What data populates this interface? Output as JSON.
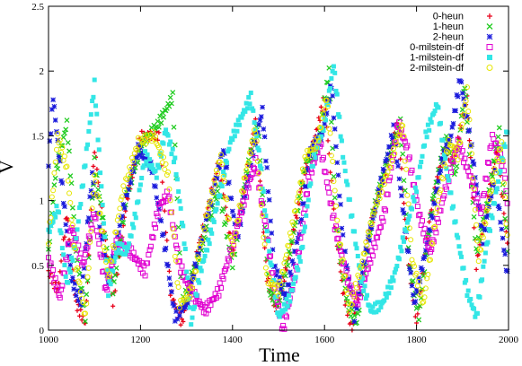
{
  "chart_data": {
    "type": "scatter",
    "title": "",
    "xlabel": "Time",
    "ylabel": "V",
    "xlim": [
      1000,
      2000
    ],
    "ylim": [
      0,
      2.5
    ],
    "x_ticks": [
      "1000",
      "1200",
      "1400",
      "1600",
      "1800",
      "2000"
    ],
    "x_tick_values": [
      1000,
      1200,
      1400,
      1600,
      1800,
      2000
    ],
    "y_ticks": [
      "0",
      "0.5",
      "1",
      "1.5",
      "2",
      "2.5"
    ],
    "y_tick_values": [
      0,
      0.5,
      1,
      1.5,
      2,
      2.5
    ],
    "grid": false,
    "legend_position": "top-right",
    "series": [
      {
        "name": "0-heun",
        "marker": "plus",
        "color": "#e8001a",
        "anchors": [
          [
            1000,
            0.45
          ],
          [
            1020,
            0.3
          ],
          [
            1040,
            0.9
          ],
          [
            1060,
            0.2
          ],
          [
            1080,
            0.05
          ],
          [
            1100,
            1.4
          ],
          [
            1140,
            0.2
          ],
          [
            1170,
            1.0
          ],
          [
            1200,
            1.5
          ],
          [
            1240,
            1.5
          ],
          [
            1265,
            0.3
          ],
          [
            1290,
            0.05
          ],
          [
            1330,
            0.7
          ],
          [
            1370,
            1.3
          ],
          [
            1400,
            0.6
          ],
          [
            1425,
            1.1
          ],
          [
            1450,
            1.6
          ],
          [
            1475,
            0.4
          ],
          [
            1495,
            0.15
          ],
          [
            1525,
            0.6
          ],
          [
            1555,
            1.2
          ],
          [
            1580,
            1.5
          ],
          [
            1600,
            1.8
          ],
          [
            1620,
            0.9
          ],
          [
            1640,
            0.3
          ],
          [
            1660,
            0.0
          ],
          [
            1700,
            0.8
          ],
          [
            1730,
            1.2
          ],
          [
            1760,
            1.6
          ],
          [
            1780,
            0.6
          ],
          [
            1800,
            0.05
          ],
          [
            1830,
            0.9
          ],
          [
            1860,
            1.4
          ],
          [
            1880,
            1.3
          ],
          [
            1910,
            1.8
          ],
          [
            1930,
            0.5
          ],
          [
            1950,
            0.9
          ],
          [
            1975,
            1.4
          ],
          [
            2000,
            0.6
          ]
        ]
      },
      {
        "name": "1-heun",
        "marker": "cross",
        "color": "#22cc22",
        "anchors": [
          [
            1000,
            0.6
          ],
          [
            1015,
            1.2
          ],
          [
            1040,
            1.6
          ],
          [
            1060,
            0.6
          ],
          [
            1080,
            0.1
          ],
          [
            1100,
            1.3
          ],
          [
            1140,
            0.3
          ],
          [
            1170,
            1.05
          ],
          [
            1205,
            1.45
          ],
          [
            1240,
            1.6
          ],
          [
            1270,
            1.8
          ],
          [
            1290,
            0.2
          ],
          [
            1330,
            0.6
          ],
          [
            1370,
            1.1
          ],
          [
            1400,
            0.5
          ],
          [
            1430,
            1.2
          ],
          [
            1455,
            1.6
          ],
          [
            1480,
            0.3
          ],
          [
            1500,
            0.2
          ],
          [
            1530,
            0.7
          ],
          [
            1560,
            1.3
          ],
          [
            1585,
            1.4
          ],
          [
            1610,
            2.0
          ],
          [
            1625,
            0.8
          ],
          [
            1650,
            0.2
          ],
          [
            1670,
            0.05
          ],
          [
            1705,
            0.9
          ],
          [
            1735,
            1.3
          ],
          [
            1765,
            1.6
          ],
          [
            1785,
            0.5
          ],
          [
            1805,
            0.1
          ],
          [
            1835,
            1.0
          ],
          [
            1865,
            1.5
          ],
          [
            1885,
            1.2
          ],
          [
            1905,
            1.9
          ],
          [
            1930,
            0.6
          ],
          [
            1955,
            1.0
          ],
          [
            1980,
            1.55
          ],
          [
            2000,
            0.5
          ]
        ]
      },
      {
        "name": "2-heun",
        "marker": "star",
        "color": "#1a1adc",
        "anchors": [
          [
            1000,
            1.3
          ],
          [
            1010,
            1.8
          ],
          [
            1030,
            1.1
          ],
          [
            1050,
            0.4
          ],
          [
            1070,
            0.2
          ],
          [
            1095,
            1.2
          ],
          [
            1130,
            0.35
          ],
          [
            1160,
            0.9
          ],
          [
            1195,
            1.4
          ],
          [
            1225,
            1.25
          ],
          [
            1255,
            0.6
          ],
          [
            1275,
            0.1
          ],
          [
            1300,
            0.2
          ],
          [
            1340,
            0.8
          ],
          [
            1380,
            1.4
          ],
          [
            1410,
            0.7
          ],
          [
            1440,
            1.3
          ],
          [
            1465,
            1.7
          ],
          [
            1490,
            0.5
          ],
          [
            1515,
            0.25
          ],
          [
            1545,
            0.75
          ],
          [
            1570,
            1.4
          ],
          [
            1595,
            1.5
          ],
          [
            1615,
            1.9
          ],
          [
            1640,
            0.7
          ],
          [
            1665,
            0.1
          ],
          [
            1690,
            0.6
          ],
          [
            1720,
            1.1
          ],
          [
            1750,
            1.55
          ],
          [
            1775,
            0.8
          ],
          [
            1795,
            0.2
          ],
          [
            1825,
            0.7
          ],
          [
            1855,
            1.3
          ],
          [
            1875,
            1.5
          ],
          [
            1895,
            1.95
          ],
          [
            1920,
            1.4
          ],
          [
            1945,
            0.7
          ],
          [
            1970,
            1.2
          ],
          [
            2000,
            0.35
          ]
        ]
      },
      {
        "name": "0-milstein-df",
        "marker": "square-open",
        "color": "#e000d0",
        "anchors": [
          [
            1000,
            0.55
          ],
          [
            1025,
            0.25
          ],
          [
            1050,
            0.8
          ],
          [
            1075,
            0.5
          ],
          [
            1100,
            0.9
          ],
          [
            1125,
            0.3
          ],
          [
            1150,
            0.7
          ],
          [
            1180,
            0.6
          ],
          [
            1210,
            0.45
          ],
          [
            1240,
            0.95
          ],
          [
            1260,
            1.05
          ],
          [
            1285,
            0.5
          ],
          [
            1310,
            0.3
          ],
          [
            1340,
            0.15
          ],
          [
            1370,
            0.3
          ],
          [
            1400,
            0.65
          ],
          [
            1425,
            1.0
          ],
          [
            1450,
            1.3
          ],
          [
            1470,
            0.85
          ],
          [
            1490,
            0.35
          ],
          [
            1510,
            0.0
          ],
          [
            1540,
            0.5
          ],
          [
            1565,
            1.15
          ],
          [
            1590,
            1.45
          ],
          [
            1620,
            0.85
          ],
          [
            1645,
            0.45
          ],
          [
            1670,
            0.2
          ],
          [
            1700,
            0.55
          ],
          [
            1730,
            0.9
          ],
          [
            1760,
            1.6
          ],
          [
            1780,
            1.4
          ],
          [
            1805,
            0.9
          ],
          [
            1830,
            0.6
          ],
          [
            1860,
            1.05
          ],
          [
            1890,
            1.45
          ],
          [
            1915,
            1.2
          ],
          [
            1940,
            0.9
          ],
          [
            1965,
            1.5
          ],
          [
            1990,
            1.25
          ],
          [
            2000,
            0.9
          ]
        ]
      },
      {
        "name": "1-milstein-df",
        "marker": "square-filled",
        "color": "#33e6e6",
        "anchors": [
          [
            1000,
            0.75
          ],
          [
            1020,
            0.95
          ],
          [
            1040,
            0.35
          ],
          [
            1060,
            0.7
          ],
          [
            1080,
            1.3
          ],
          [
            1100,
            1.9
          ],
          [
            1115,
            1.1
          ],
          [
            1130,
            0.3
          ],
          [
            1150,
            0.65
          ],
          [
            1170,
            0.6
          ],
          [
            1190,
            0.9
          ],
          [
            1210,
            1.35
          ],
          [
            1235,
            1.2
          ],
          [
            1255,
            1.55
          ],
          [
            1275,
            1.3
          ],
          [
            1295,
            0.7
          ],
          [
            1310,
            0.05
          ],
          [
            1330,
            0.45
          ],
          [
            1350,
            0.7
          ],
          [
            1375,
            1.1
          ],
          [
            1395,
            1.45
          ],
          [
            1420,
            1.65
          ],
          [
            1440,
            1.8
          ],
          [
            1460,
            1.3
          ],
          [
            1480,
            0.6
          ],
          [
            1500,
            0.1
          ],
          [
            1525,
            0.25
          ],
          [
            1550,
            0.6
          ],
          [
            1575,
            1.3
          ],
          [
            1600,
            1.6
          ],
          [
            1620,
            2.05
          ],
          [
            1640,
            1.35
          ],
          [
            1660,
            0.85
          ],
          [
            1680,
            0.4
          ],
          [
            1700,
            0.15
          ],
          [
            1725,
            0.2
          ],
          [
            1750,
            0.4
          ],
          [
            1775,
            0.75
          ],
          [
            1800,
            1.1
          ],
          [
            1820,
            1.5
          ],
          [
            1845,
            1.75
          ],
          [
            1865,
            1.25
          ],
          [
            1890,
            0.7
          ],
          [
            1910,
            0.3
          ],
          [
            1930,
            0.1
          ],
          [
            1950,
            0.6
          ],
          [
            1975,
            1.1
          ],
          [
            2000,
            1.6
          ]
        ]
      },
      {
        "name": "2-milstein-df",
        "marker": "circle-open",
        "color": "#e6e600",
        "anchors": [
          [
            1000,
            0.7
          ],
          [
            1020,
            1.5
          ],
          [
            1040,
            1.25
          ],
          [
            1060,
            0.5
          ],
          [
            1080,
            0.1
          ],
          [
            1100,
            1.2
          ],
          [
            1130,
            0.4
          ],
          [
            1160,
            1.05
          ],
          [
            1195,
            1.45
          ],
          [
            1230,
            1.5
          ],
          [
            1260,
            1.2
          ],
          [
            1285,
            0.2
          ],
          [
            1310,
            0.3
          ],
          [
            1345,
            0.9
          ],
          [
            1375,
            1.35
          ],
          [
            1400,
            0.6
          ],
          [
            1425,
            1.15
          ],
          [
            1450,
            1.55
          ],
          [
            1475,
            0.4
          ],
          [
            1500,
            0.3
          ],
          [
            1530,
            0.8
          ],
          [
            1560,
            1.35
          ],
          [
            1585,
            1.45
          ],
          [
            1605,
            1.8
          ],
          [
            1630,
            0.75
          ],
          [
            1655,
            0.15
          ],
          [
            1680,
            0.5
          ],
          [
            1710,
            0.95
          ],
          [
            1740,
            1.25
          ],
          [
            1770,
            1.6
          ],
          [
            1790,
            0.55
          ],
          [
            1815,
            0.2
          ],
          [
            1845,
            0.95
          ],
          [
            1870,
            1.45
          ],
          [
            1890,
            1.35
          ],
          [
            1910,
            1.85
          ],
          [
            1935,
            0.55
          ],
          [
            1960,
            1.05
          ],
          [
            1985,
            1.45
          ],
          [
            2000,
            0.55
          ]
        ]
      }
    ]
  }
}
